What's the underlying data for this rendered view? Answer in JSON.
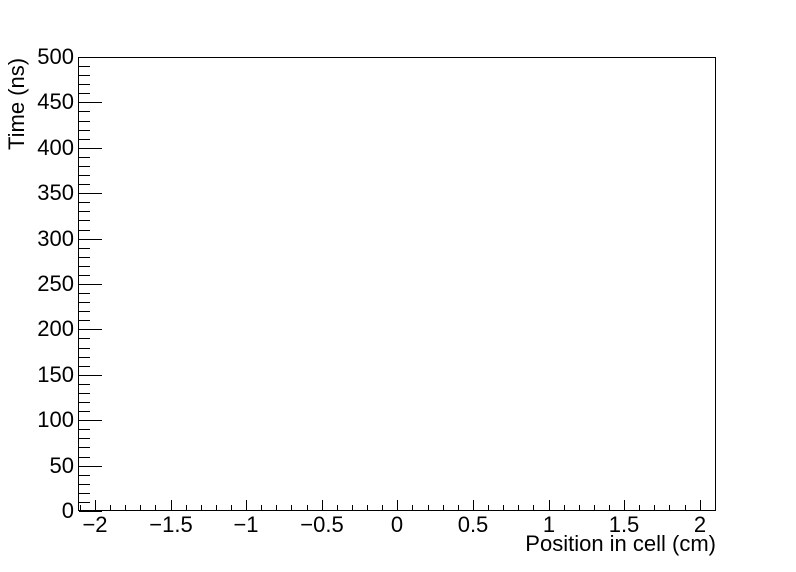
{
  "chart_data": {
    "type": "scatter",
    "title": "",
    "xlabel": "Position in cell (cm)",
    "ylabel": "Time (ns)",
    "xlim": [
      -2.11,
      2.11
    ],
    "ylim": [
      0,
      500
    ],
    "grid": false,
    "frame": true,
    "legend": null,
    "series": [],
    "x_axis": {
      "major_tick_values": [
        -2,
        -1.5,
        -1,
        -0.5,
        0,
        0.5,
        1,
        1.5,
        2
      ],
      "tick_labels": [
        "−2",
        "−1.5",
        "−1",
        "−0.5",
        "0",
        "0.5",
        "1",
        "1.5",
        "2"
      ],
      "minor_tick_step": 0.1,
      "minor_tick_range": [
        -2.1,
        2.1
      ]
    },
    "y_axis": {
      "major_tick_values": [
        0,
        50,
        100,
        150,
        200,
        250,
        300,
        350,
        400,
        450,
        500
      ],
      "tick_labels": [
        "0",
        "50",
        "100",
        "150",
        "200",
        "250",
        "300",
        "350",
        "400",
        "450",
        "500"
      ],
      "minor_tick_step": 10,
      "minor_tick_range": [
        0,
        500
      ]
    },
    "colors": {
      "axis_line": "#000000",
      "text": "#000000",
      "background": "#ffffff"
    },
    "notes": "Empty plot frame with no data points drawn; ticks point inward; no top/right axis ticks."
  },
  "titles": {
    "x_axis_title": "Position in cell (cm)",
    "y_axis_title": "Time (ns)"
  }
}
